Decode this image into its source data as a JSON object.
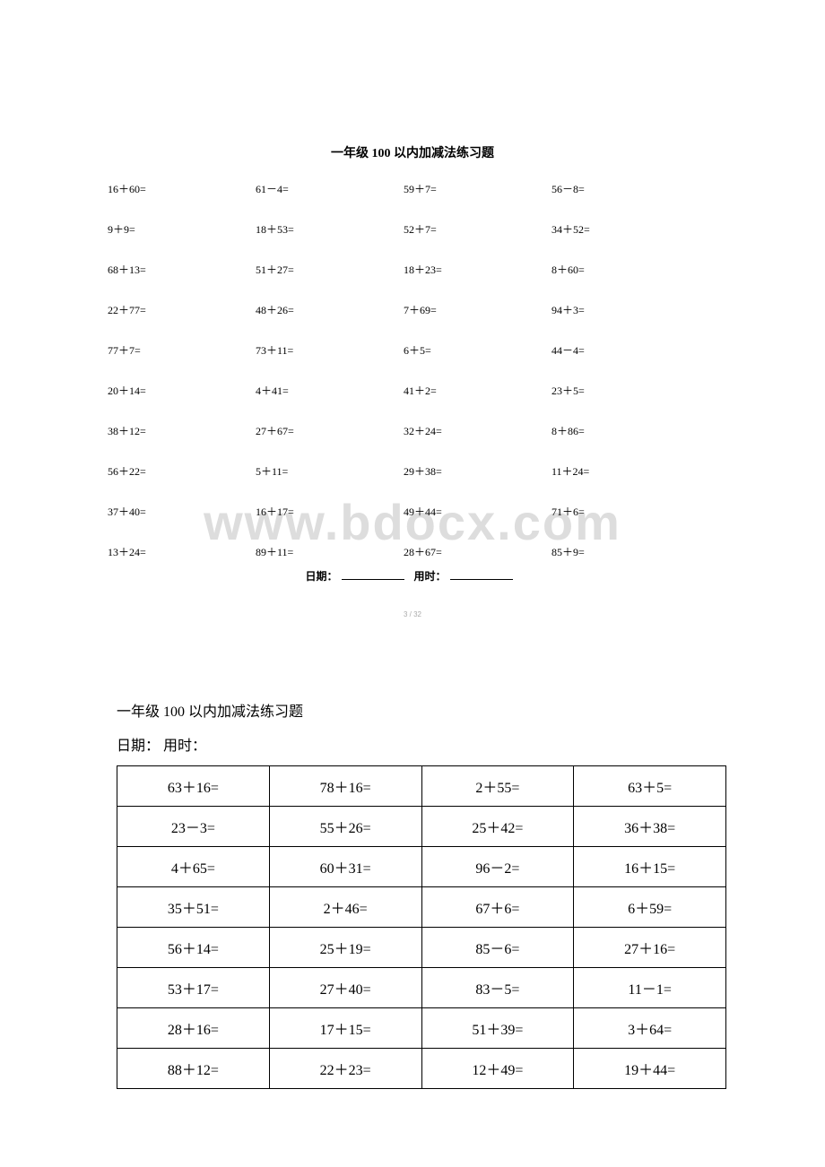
{
  "top": {
    "title": "一年级 100 以内加减法练习题",
    "problems": [
      [
        "16＋60=",
        "61－4=",
        "59＋7=",
        "56－8="
      ],
      [
        "9＋9=",
        "18＋53=",
        "52＋7=",
        "34＋52="
      ],
      [
        "68＋13=",
        "51＋27=",
        "18＋23=",
        "8＋60="
      ],
      [
        "22＋77=",
        "48＋26=",
        "7＋69=",
        "94＋3="
      ],
      [
        "77＋7=",
        "73＋11=",
        "6＋5=",
        "44－4="
      ],
      [
        "20＋14=",
        "4＋41=",
        "41＋2=",
        "23＋5="
      ],
      [
        "38＋12=",
        "27＋67=",
        "32＋24=",
        "8＋86="
      ],
      [
        "56＋22=",
        "5＋11=",
        "29＋38=",
        "11＋24="
      ],
      [
        "37＋40=",
        "16＋17=",
        "49＋44=",
        "71＋6="
      ],
      [
        "13＋24=",
        "89＋11=",
        "28＋67=",
        "85＋9="
      ]
    ],
    "date_label": "日期：",
    "time_label": "用时：",
    "page_num": "3 / 32"
  },
  "watermark": "www.bdocx.com",
  "bottom": {
    "title": "一年级 100 以内加减法练习题",
    "date_line": "日期：  用时：",
    "rows": [
      [
        "63＋16=",
        "78＋16=",
        "2＋55=",
        "63＋5="
      ],
      [
        "23－3=",
        "55＋26=",
        "25＋42=",
        "36＋38="
      ],
      [
        "4＋65=",
        "60＋31=",
        "96－2=",
        "16＋15="
      ],
      [
        "35＋51=",
        "2＋46=",
        "67＋6=",
        "6＋59="
      ],
      [
        "56＋14=",
        "25＋19=",
        "85－6=",
        "27＋16="
      ],
      [
        "53＋17=",
        "27＋40=",
        "83－5=",
        "11－1="
      ],
      [
        "28＋16=",
        "17＋15=",
        "51＋39=",
        "3＋64="
      ],
      [
        "88＋12=",
        "22＋23=",
        "12＋49=",
        "19＋44="
      ]
    ]
  }
}
